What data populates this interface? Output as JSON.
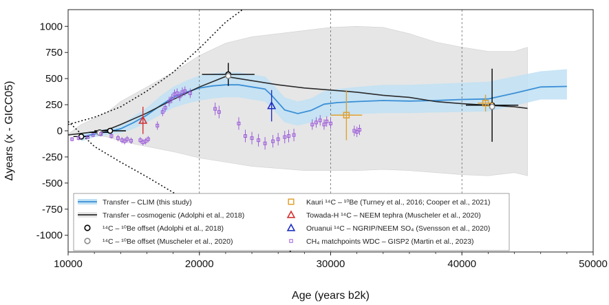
{
  "chart_data": {
    "type": "line",
    "xlabel": "Age (years b2k)",
    "ylabel": "Δyears (x - GICC05)",
    "xlim": [
      10000,
      50000
    ],
    "ylim": [
      -1160,
      1160
    ],
    "xticks": [
      10000,
      20000,
      30000,
      40000,
      50000
    ],
    "xtick_labels": [
      "10000",
      "20000",
      "30000",
      "40000",
      "50000"
    ],
    "yticks": [
      1000,
      750,
      500,
      250,
      0,
      -250,
      -500,
      -750,
      -1000
    ],
    "ytick_labels": [
      "1000",
      "750",
      "500",
      "250",
      "0",
      "-250",
      "-500",
      "-750",
      "-1000"
    ],
    "grid": "vertical dashed at ticks",
    "legend_placement": "bottom",
    "colors": {
      "clim_line": "#3a8fd6",
      "clim_band": "#bfe0f4",
      "cosmo_line": "#2a2a2a",
      "cosmo_band": "#e6e6e6",
      "cosmo_bounds": "#111111",
      "kauri": "#e0a030",
      "towada": "#d43030",
      "oruanui": "#2030c0",
      "ch4": "#9b59d8",
      "be_adolphi": "#000000",
      "be_muscheler": "#8c8c8c"
    },
    "series": [
      {
        "name": "Transfer – CLIM (this study)",
        "kind": "line",
        "x": [
          11000,
          12000,
          13000,
          14000,
          15000,
          16000,
          17000,
          18000,
          19000,
          20000,
          21000,
          22000,
          23000,
          24000,
          25000,
          25500,
          26500,
          27500,
          28500,
          29500,
          30500,
          32000,
          34000,
          36000,
          38000,
          40000,
          42000,
          44000,
          46000,
          48000
        ],
        "y": [
          -60,
          -30,
          -10,
          20,
          80,
          150,
          240,
          320,
          370,
          410,
          430,
          440,
          440,
          420,
          400,
          340,
          200,
          165,
          195,
          255,
          270,
          280,
          290,
          285,
          290,
          300,
          305,
          360,
          420,
          425
        ],
        "band_lower": [
          -100,
          -60,
          -40,
          -20,
          20,
          80,
          150,
          220,
          260,
          290,
          310,
          320,
          320,
          300,
          280,
          220,
          80,
          50,
          80,
          130,
          150,
          160,
          170,
          170,
          175,
          180,
          185,
          240,
          300,
          300
        ],
        "band_upper": [
          -20,
          0,
          20,
          60,
          140,
          220,
          330,
          420,
          480,
          530,
          550,
          560,
          560,
          540,
          520,
          460,
          320,
          280,
          310,
          380,
          400,
          420,
          440,
          440,
          450,
          460,
          470,
          520,
          570,
          590
        ]
      },
      {
        "name": "Transfer – cosmogenic (Adolphi et al., 2018)",
        "kind": "line",
        "x": [
          10000,
          11000,
          12000,
          13000,
          14000,
          16000,
          18000,
          20000,
          22000,
          24000,
          26000,
          28000,
          30000,
          32000,
          34000,
          36000,
          38000,
          40000,
          42000,
          44000,
          45000
        ],
        "y": [
          -40,
          -25,
          -10,
          10,
          60,
          170,
          300,
          420,
          520,
          480,
          440,
          410,
          390,
          370,
          340,
          320,
          280,
          260,
          245,
          230,
          215
        ],
        "band_lower": [
          -30,
          -40,
          -40,
          -60,
          -100,
          -150,
          -200,
          -260,
          -300,
          -340,
          -360,
          -380,
          -380,
          -380,
          -370,
          -380,
          -400,
          -420,
          -430,
          -400,
          -430
        ],
        "band_upper": [
          -30,
          60,
          120,
          180,
          280,
          420,
          560,
          720,
          840,
          900,
          930,
          960,
          990,
          1000,
          990,
          930,
          850,
          800,
          760,
          760,
          800
        ],
        "bound_upper_x": [
          10000,
          12000,
          14000,
          16000,
          18000,
          20000,
          22000,
          23500
        ],
        "bound_upper_y": [
          60,
          130,
          230,
          380,
          560,
          790,
          1040,
          1180
        ],
        "bound_lower_x": [
          10000,
          12000,
          14000,
          16000,
          18000,
          20000,
          22000,
          24000,
          26000,
          27000
        ],
        "bound_lower_y": [
          90,
          -150,
          -300,
          -440,
          -590,
          -730,
          -840,
          -960,
          -1080,
          -1160
        ]
      }
    ],
    "points": [
      {
        "name": "14C – 10Be offset (Adolphi et al., 2018)",
        "marker": "circle-black",
        "x": [
          11000,
          12400,
          13200,
          22200,
          42300
        ],
        "y": [
          -55,
          -15,
          0,
          540,
          245
        ],
        "xerr": [
          600,
          800,
          1200,
          2000,
          2000
        ],
        "yerr": [
          25,
          25,
          25,
          110,
          350
        ]
      },
      {
        "name": "14C – 10Be offset (Muscheler et al., 2020)",
        "marker": "circle-gray",
        "x": [
          12400,
          22200,
          42300
        ],
        "y": [
          -20,
          525,
          230
        ],
        "xerr": [
          0,
          0,
          0
        ],
        "yerr": [
          0,
          0,
          0
        ]
      },
      {
        "name": "Kauri 14C – 10Be (Turney et al., 2016; Cooper et al., 2021)",
        "marker": "square-orange",
        "x": [
          31200,
          41800
        ],
        "y": [
          150,
          265
        ],
        "xerr": [
          1200,
          600
        ],
        "yerr": [
          240,
          80
        ]
      },
      {
        "name": "Towada-H 14C – NEEM tephra (Muscheler et al., 2020)",
        "marker": "triangle-red",
        "x": [
          15700
        ],
        "y": [
          100
        ],
        "xerr": [
          0
        ],
        "yerr": [
          130
        ]
      },
      {
        "name": "Oruanui 14C – NGRIP/NEEM SO4 (Svensson et al., 2020)",
        "marker": "triangle-blue",
        "x": [
          25500
        ],
        "y": [
          240
        ],
        "xerr": [
          0
        ],
        "yerr": [
          150
        ]
      },
      {
        "name": "CH4 matchpoints WDC – GISP2 (Martin et al., 2023)",
        "marker": "square-purple",
        "x": [
          10300,
          10800,
          11500,
          11900,
          12500,
          13300,
          13800,
          14100,
          14300,
          14500,
          14800,
          15500,
          15700,
          15900,
          16100,
          16800,
          17200,
          17400,
          17700,
          17900,
          18100,
          18300,
          18500,
          18700,
          18900,
          19300,
          21200,
          21500,
          23000,
          23500,
          24000,
          24500,
          25000,
          25600,
          26000,
          26500,
          26800,
          27200,
          28600,
          28900,
          29200,
          29500,
          29700,
          30000,
          31800,
          32000,
          32200
        ],
        "y": [
          -80,
          -70,
          -60,
          -40,
          -30,
          -50,
          -70,
          -90,
          -100,
          -80,
          -95,
          -90,
          -110,
          -100,
          -80,
          50,
          180,
          220,
          280,
          310,
          350,
          360,
          330,
          370,
          380,
          360,
          210,
          180,
          70,
          -50,
          -70,
          -90,
          -120,
          -100,
          -80,
          -60,
          -50,
          -40,
          60,
          80,
          100,
          60,
          90,
          70,
          0,
          -10,
          10
        ],
        "yerr": [
          20,
          20,
          20,
          20,
          25,
          25,
          30,
          30,
          30,
          30,
          30,
          30,
          30,
          30,
          30,
          40,
          40,
          40,
          45,
          45,
          45,
          45,
          45,
          45,
          45,
          45,
          60,
          60,
          60,
          60,
          60,
          60,
          60,
          60,
          60,
          60,
          60,
          60,
          50,
          50,
          50,
          50,
          50,
          50,
          50,
          50,
          50
        ]
      }
    ],
    "legend": [
      {
        "label": "Transfer – CLIM (this study)",
        "kind": "band-line"
      },
      {
        "label": "Transfer – cosmogenic (Adolphi et al., 2018)",
        "kind": "band-line-dark"
      },
      {
        "label": "¹⁴C – ¹⁰Be offset (Adolphi et al., 2018)",
        "kind": "circle-black"
      },
      {
        "label": "¹⁴C – ¹⁰Be offset (Muscheler et al., 2020)",
        "kind": "circle-gray"
      },
      {
        "label": "Kauri ¹⁴C – ¹⁰Be (Turney et al., 2016; Cooper et al., 2021)",
        "kind": "square-orange"
      },
      {
        "label": "Towada-H ¹⁴C – NEEM tephra (Muscheler et al., 2020)",
        "kind": "triangle-red"
      },
      {
        "label": "Oruanui ¹⁴C – NGRIP/NEEM SO₄ (Svensson et al., 2020)",
        "kind": "triangle-blue"
      },
      {
        "label": "CH₄ matchpoints WDC – GISP2 (Martin et al., 2023)",
        "kind": "square-purple"
      }
    ]
  }
}
